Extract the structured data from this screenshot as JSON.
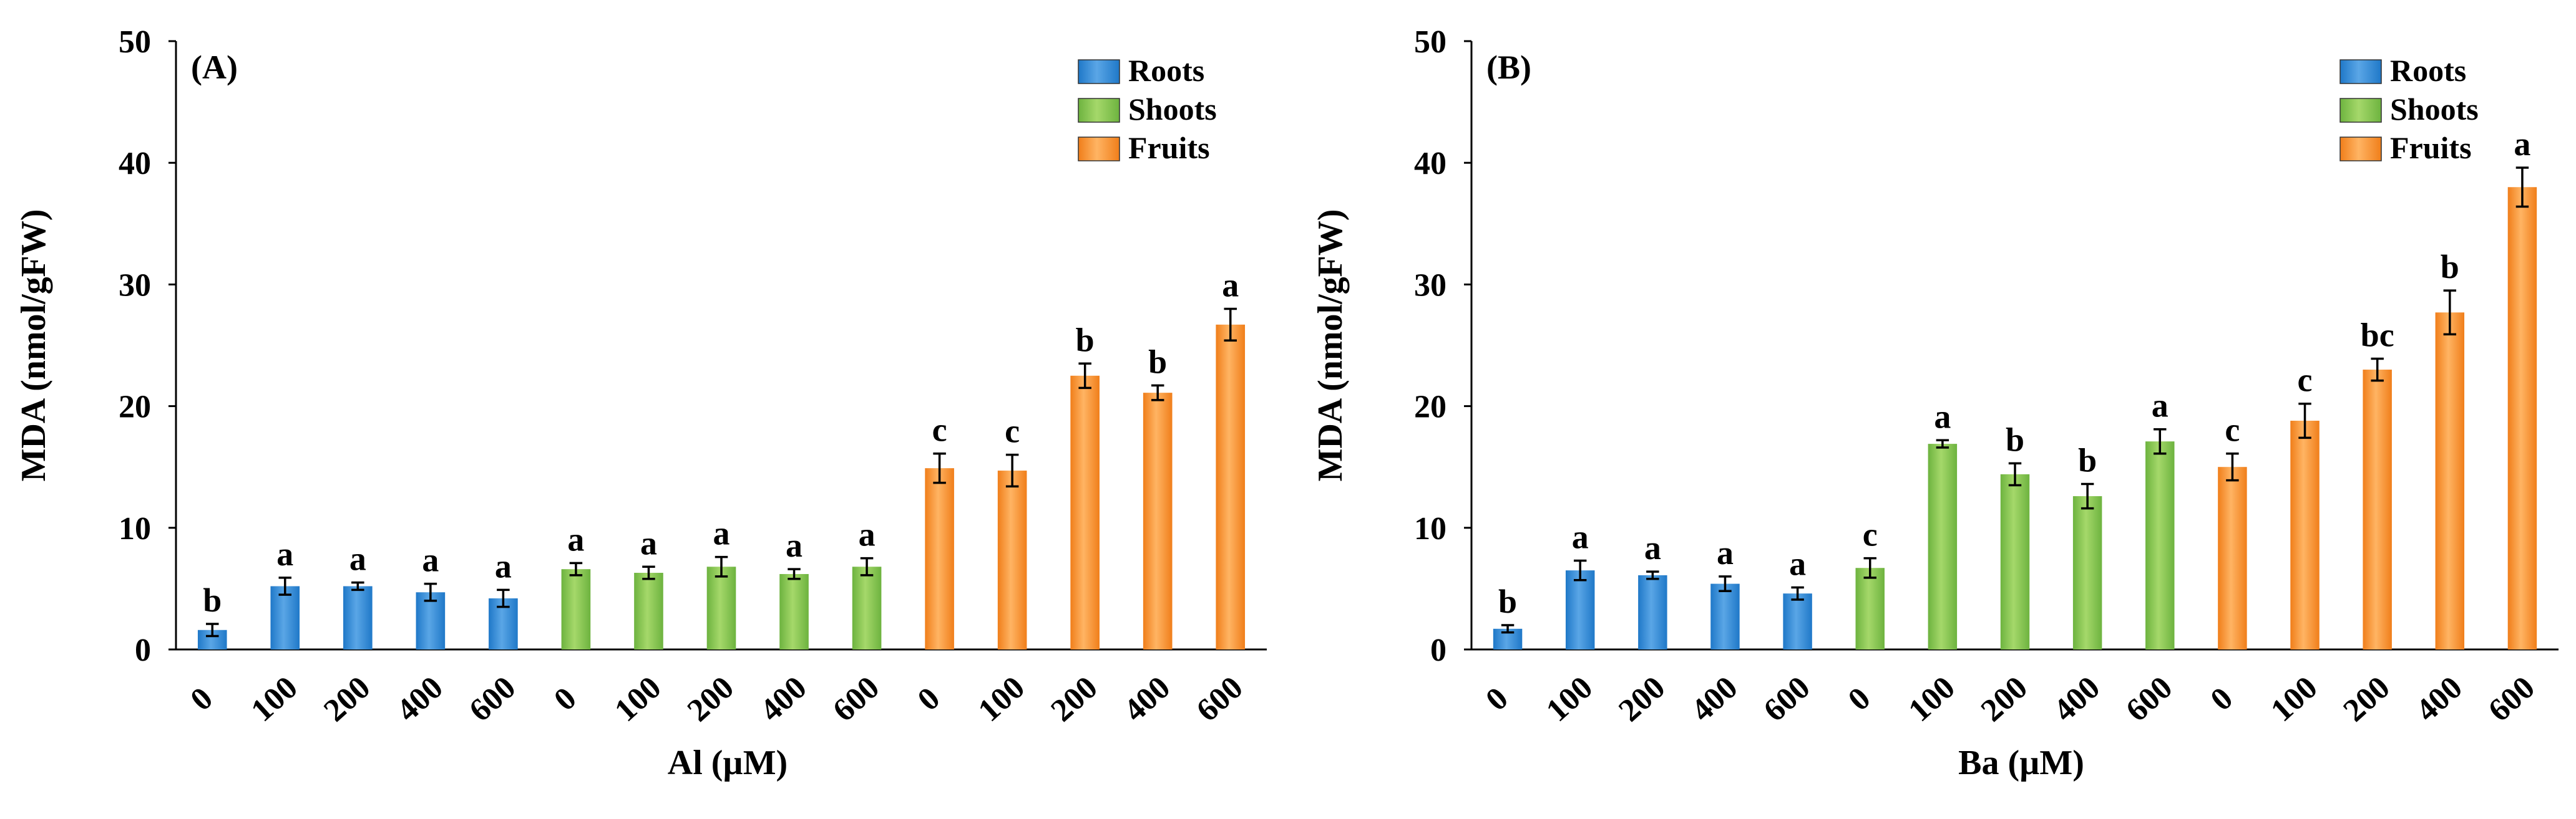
{
  "chart_data": [
    {
      "type": "bar",
      "panel": "(A)",
      "xlabel": "Al (µM)",
      "ylabel": "MDA  (nmol/gFW)",
      "ylim": [
        0,
        50
      ],
      "yticks": [
        0,
        10,
        20,
        30,
        40,
        50
      ],
      "legend_position": "top-right",
      "groups": [
        {
          "name": "Roots",
          "color": "#1f78c8",
          "highlight": "#5aa6e6",
          "categories": [
            "0",
            "100",
            "200",
            "400",
            "600"
          ],
          "values": [
            1.6,
            5.2,
            5.2,
            4.7,
            4.2
          ],
          "errors": [
            0.5,
            0.7,
            0.3,
            0.7,
            0.7
          ],
          "labels": [
            "b",
            "a",
            "a",
            "a",
            "a"
          ]
        },
        {
          "name": "Shoots",
          "color": "#6db33f",
          "highlight": "#a5d86a",
          "categories": [
            "0",
            "100",
            "200",
            "400",
            "600"
          ],
          "values": [
            6.6,
            6.3,
            6.8,
            6.2,
            6.8
          ],
          "errors": [
            0.5,
            0.5,
            0.8,
            0.4,
            0.7
          ],
          "labels": [
            "a",
            "a",
            "a",
            "a",
            "a"
          ]
        },
        {
          "name": "Fruits",
          "color": "#f07e1a",
          "highlight": "#ffb463",
          "categories": [
            "0",
            "100",
            "200",
            "400",
            "600"
          ],
          "values": [
            14.9,
            14.7,
            22.5,
            21.1,
            26.7
          ],
          "errors": [
            1.2,
            1.3,
            1.0,
            0.6,
            1.3
          ],
          "labels": [
            "c",
            "c",
            "b",
            "b",
            "a"
          ]
        }
      ]
    },
    {
      "type": "bar",
      "panel": "(B)",
      "xlabel": "Ba (µM)",
      "ylabel": "MDA  (nmol/gFW)",
      "ylim": [
        0,
        50
      ],
      "yticks": [
        0,
        10,
        20,
        30,
        40,
        50
      ],
      "legend_position": "top-right",
      "groups": [
        {
          "name": "Roots",
          "color": "#1f78c8",
          "highlight": "#5aa6e6",
          "categories": [
            "0",
            "100",
            "200",
            "400",
            "600"
          ],
          "values": [
            1.7,
            6.5,
            6.1,
            5.4,
            4.6
          ],
          "errors": [
            0.3,
            0.8,
            0.3,
            0.6,
            0.5
          ],
          "labels": [
            "b",
            "a",
            "a",
            "a",
            "a"
          ]
        },
        {
          "name": "Shoots",
          "color": "#6db33f",
          "highlight": "#a5d86a",
          "categories": [
            "0",
            "100",
            "200",
            "400",
            "600"
          ],
          "values": [
            6.7,
            16.9,
            14.4,
            12.6,
            17.1
          ],
          "errors": [
            0.8,
            0.3,
            0.9,
            1.0,
            1.0
          ],
          "labels": [
            "c",
            "a",
            "b",
            "b",
            "a"
          ]
        },
        {
          "name": "Fruits",
          "color": "#f07e1a",
          "highlight": "#ffb463",
          "categories": [
            "0",
            "100",
            "200",
            "400",
            "600"
          ],
          "values": [
            15.0,
            18.8,
            23.0,
            27.7,
            38.0
          ],
          "errors": [
            1.1,
            1.4,
            0.9,
            1.8,
            1.6
          ],
          "labels": [
            "c",
            "c",
            "bc",
            "b",
            "a"
          ]
        }
      ]
    }
  ]
}
